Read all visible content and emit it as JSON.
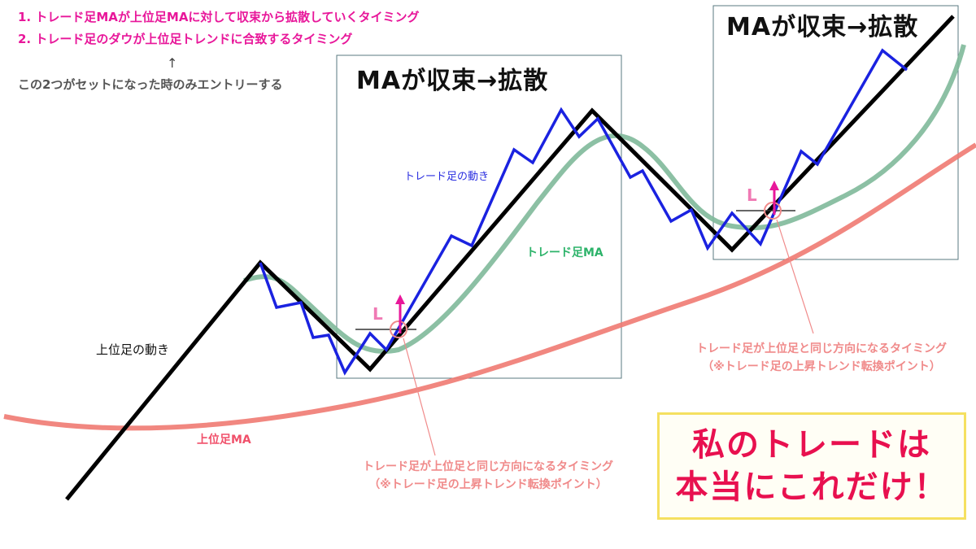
{
  "rules": {
    "line1": "1. トレード足MAが上位足MAに対して収束から拡散していくタイミング",
    "line2": "2. トレード足のダウが上位足トレンドに合致するタイミング",
    "arrow": "↑",
    "note": "この2つがセットになった時のみエントリーする"
  },
  "boxes": [
    {
      "title": "MAが収束→拡散"
    },
    {
      "title": "MAが収束→拡散"
    }
  ],
  "labels": {
    "trade_move": "トレード足の動き",
    "trade_ma": "トレード足MA",
    "higher_move": "上位足の動き",
    "higher_ma": "上位足MA",
    "entry_mark": "L"
  },
  "annotations": [
    {
      "line1": "トレード足が上位足と同じ方向になるタイミング",
      "line2": "（※トレード足の上昇トレンド転換ポイント）"
    },
    {
      "line1": "トレード足が上位足と同じ方向になるタイミング",
      "line2": "（※トレード足の上昇トレンド転換ポイント）"
    }
  ],
  "promo": {
    "line1": "私のトレードは",
    "line2": "本当にこれだけ！"
  },
  "colors": {
    "rules_text": "#e8179a",
    "trade_price": "#1a22e0",
    "trade_ma": "#7fb99a",
    "higher_price": "#000000",
    "higher_ma": "#f07a72",
    "annotation": "#f08a8a",
    "entry_arrow": "#e8179a",
    "promo_text": "#e8104f",
    "promo_border": "#f5e060"
  }
}
